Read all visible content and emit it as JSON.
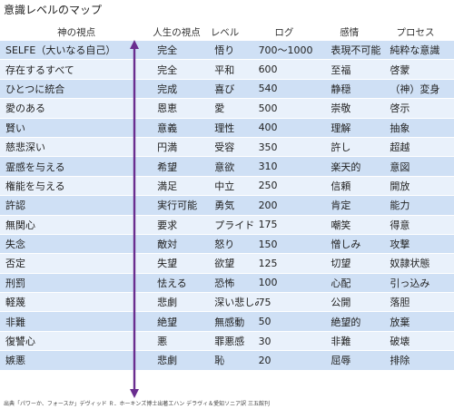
{
  "title": "意識レベルのマップ",
  "headers": {
    "god": "神の視点",
    "life": "人生の視点",
    "level": "レベル",
    "log": "ログ",
    "emotion": "感情",
    "process": "プロセス"
  },
  "rows": [
    {
      "god": "SELFE（大いなる自己）",
      "life": "完全",
      "level": "悟り",
      "log": "700～1000",
      "emotion": "表現不可能",
      "process": "純粋な意識"
    },
    {
      "god": "存在するすべて",
      "life": "完全",
      "level": "平和",
      "log": "600",
      "emotion": "至福",
      "process": "啓蒙"
    },
    {
      "god": "ひとつに統合",
      "life": "完成",
      "level": "喜び",
      "log": "540",
      "emotion": "静穏",
      "process": "（神）変身"
    },
    {
      "god": "愛のある",
      "life": "恩恵",
      "level": "愛",
      "log": "500",
      "emotion": "崇敬",
      "process": "啓示"
    },
    {
      "god": "賢い",
      "life": "意義",
      "level": "理性",
      "log": "400",
      "emotion": "理解",
      "process": "抽象"
    },
    {
      "god": "慈悲深い",
      "life": "円満",
      "level": "受容",
      "log": "350",
      "emotion": "許し",
      "process": "超越"
    },
    {
      "god": "霊感を与える",
      "life": "希望",
      "level": "意欲",
      "log": "310",
      "emotion": "楽天的",
      "process": "意図"
    },
    {
      "god": "権能を与える",
      "life": "満足",
      "level": "中立",
      "log": "250",
      "emotion": "信頼",
      "process": "開放"
    },
    {
      "god": "許認",
      "life": "実行可能",
      "level": "勇気",
      "log": "200",
      "emotion": "肯定",
      "process": "能力"
    },
    {
      "god": "無関心",
      "life": "要求",
      "level": "プライド",
      "log": "175",
      "emotion": "嘲笑",
      "process": "得意"
    },
    {
      "god": "失念",
      "life": "敵対",
      "level": "怒り",
      "log": "150",
      "emotion": "憎しみ",
      "process": "攻撃"
    },
    {
      "god": "否定",
      "life": "失望",
      "level": "欲望",
      "log": "125",
      "emotion": "切望",
      "process": "奴隷状態"
    },
    {
      "god": "刑罰",
      "life": "怯える",
      "level": "恐怖",
      "log": "100",
      "emotion": "心配",
      "process": "引っ込み"
    },
    {
      "god": "軽蔑",
      "life": "悲劇",
      "level": "深い悲しみ",
      "log": "75",
      "emotion": "公開",
      "process": "落胆"
    },
    {
      "god": "非難",
      "life": "絶望",
      "level": "無感動",
      "log": "50",
      "emotion": "絶望的",
      "process": "放棄"
    },
    {
      "god": "復讐心",
      "life": "悪",
      "level": "罪悪感",
      "log": "30",
      "emotion": "非難",
      "process": "破壊"
    },
    {
      "god": "嫉悪",
      "life": "悲劇",
      "level": "恥",
      "log": "20",
      "emotion": "屈辱",
      "process": "排除"
    }
  ],
  "footer": "出典「パワーか、フォースか」デヴィッド Ｒ．ホーキンズ博士出著エハン デラヴィ＆愛知ソニア訳 三五館刊",
  "colors": {
    "band_a": "#cfe0f5",
    "band_b": "#e9f1fb",
    "arrow": "#6a2d8f"
  }
}
